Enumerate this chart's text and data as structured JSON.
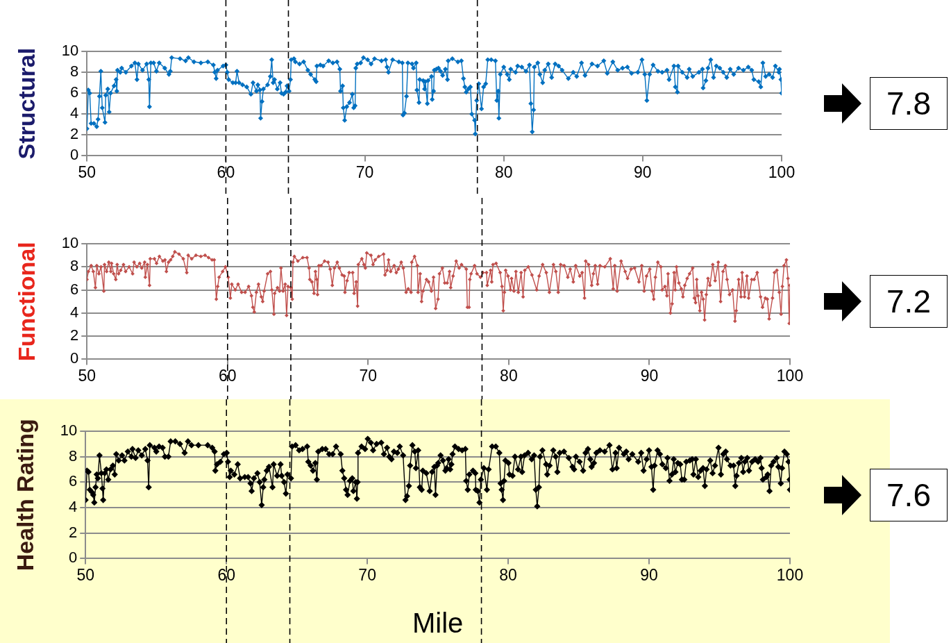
{
  "chart_data": [
    {
      "type": "line",
      "ylabel": "Structural",
      "xlim": [
        50,
        100
      ],
      "xticks": [
        50,
        60,
        70,
        80,
        90,
        100
      ],
      "ylim": [
        0,
        10
      ],
      "yticks": [
        0,
        2,
        4,
        6,
        8,
        10
      ],
      "grid": "y",
      "marker": "diamond",
      "annotations": [
        "7.8"
      ],
      "ref_lines": [
        {
          "axis": "x",
          "value": 60,
          "color": "#000000",
          "line_style": "dashed"
        },
        {
          "axis": "x",
          "value": 64.5,
          "color": "#000000",
          "line_style": "dashed"
        },
        {
          "axis": "x",
          "value": 78.1,
          "color": "#000000",
          "line_style": "dashed"
        }
      ],
      "series": [
        {
          "color": "#0070c0",
          "x": [
            50.0,
            50.1,
            50.2,
            50.3,
            50.5,
            50.7,
            50.8,
            50.9,
            51.0,
            51.1,
            51.3,
            51.35,
            51.5,
            51.6,
            51.7,
            51.95,
            52.1,
            52.15,
            52.2,
            52.4,
            52.5,
            52.8,
            53.2,
            53.45,
            53.6,
            53.7,
            54.0,
            54.3,
            54.45,
            54.5,
            54.6,
            54.8,
            55.0,
            55.2,
            55.6,
            55.9,
            56.0,
            56.1,
            56.7,
            57.1,
            57.3,
            57.7,
            58.2,
            58.7,
            59.1,
            59.2,
            59.3,
            59.4,
            59.8,
            60.0,
            60.1,
            60.2,
            60.5,
            60.7,
            60.8,
            60.95,
            61.2,
            61.5,
            61.8,
            61.95,
            62.2,
            62.3,
            62.45,
            62.5,
            62.6,
            62.7,
            63.0,
            63.2,
            63.3,
            63.4,
            63.5,
            63.7,
            63.9,
            64.0,
            64.15,
            64.3,
            64.4,
            64.55,
            64.65,
            64.7,
            64.9,
            65.0,
            65.3,
            65.6,
            65.9,
            66.1,
            66.4,
            66.5,
            66.55,
            66.8,
            67.0,
            67.4,
            67.7,
            68.0,
            68.2,
            68.25,
            68.4,
            68.45,
            68.55,
            68.7,
            68.9,
            69.1,
            69.2,
            69.3,
            69.35,
            69.45,
            69.7,
            69.9,
            70.2,
            70.45,
            70.7,
            71.2,
            71.5,
            71.6,
            71.7,
            72.0,
            72.45,
            72.7,
            72.75,
            72.85,
            73.0,
            73.1,
            73.4,
            73.5,
            73.7,
            73.75,
            73.9,
            73.95,
            74.2,
            74.3,
            74.35,
            74.5,
            74.55,
            74.8,
            74.85,
            74.95,
            75.0,
            75.15,
            75.3,
            75.45,
            75.6,
            75.8,
            75.95,
            76.0,
            76.3,
            76.7,
            76.95,
            77.1,
            77.2,
            77.3,
            77.45,
            77.6,
            77.7,
            77.9,
            77.95,
            78.05,
            78.2,
            78.4,
            78.55,
            78.7,
            78.85,
            79.1,
            79.4,
            79.5,
            79.6,
            79.65,
            79.75,
            80.0,
            80.25,
            80.4,
            80.5,
            80.85,
            81.0,
            81.3,
            81.6,
            81.85,
            81.95,
            82.05,
            82.15,
            82.2,
            82.45,
            82.6,
            82.8,
            82.95,
            83.2,
            83.45,
            83.7,
            83.95,
            84.2,
            84.65,
            85.0,
            85.25,
            85.6,
            85.85,
            86.35,
            86.75,
            87.2,
            87.45,
            87.85,
            88.2,
            88.55,
            88.9,
            89.2,
            89.65,
            89.95,
            90.15,
            90.3,
            90.5,
            90.75,
            91.1,
            91.4,
            91.75,
            91.9,
            92.25,
            92.35,
            92.5,
            92.55,
            92.85,
            93.2,
            93.35,
            93.6,
            94.05,
            94.3,
            94.35,
            94.55,
            94.7,
            94.9,
            95.1,
            95.3,
            95.55,
            95.8,
            96.05,
            96.3,
            96.55,
            96.9,
            97.25,
            97.6,
            97.85,
            98.0,
            98.35,
            98.5,
            98.65,
            98.85,
            99.1,
            99.35,
            99.55,
            99.8,
            99.85,
            99.95,
            100.0
          ],
          "values": [
            2.6,
            6.3,
            6.0,
            3.1,
            3.1,
            2.8,
            3.5,
            5.7,
            8.1,
            4.6,
            3.2,
            5.8,
            6.4,
            4.2,
            6.0,
            6.7,
            7.3,
            6.2,
            8.2,
            8.0,
            8.4,
            8.0,
            8.6,
            8.9,
            7.3,
            8.8,
            8.2,
            8.8,
            7.3,
            4.7,
            8.9,
            8.9,
            8.1,
            8.9,
            8.4,
            7.8,
            8.1,
            9.4,
            9.3,
            9.1,
            9.4,
            9.0,
            8.9,
            9.0,
            8.7,
            8.0,
            7.4,
            8.2,
            8.6,
            8.7,
            8.0,
            7.3,
            7.0,
            7.0,
            8.1,
            7.0,
            6.8,
            6.6,
            5.9,
            7.0,
            6.2,
            6.8,
            6.3,
            3.6,
            5.2,
            6.4,
            6.8,
            7.6,
            9.2,
            7.0,
            7.3,
            6.4,
            7.0,
            6.0,
            5.9,
            6.1,
            6.7,
            6.2,
            7.3,
            9.2,
            9.3,
            9.0,
            8.8,
            9.0,
            8.2,
            7.8,
            7.3,
            7.1,
            8.6,
            8.7,
            8.6,
            9.1,
            8.9,
            9.0,
            8.3,
            6.2,
            6.7,
            4.6,
            3.4,
            4.7,
            5.1,
            5.9,
            4.6,
            4.8,
            8.4,
            8.8,
            8.9,
            9.4,
            9.2,
            8.8,
            9.3,
            9.1,
            9.2,
            8.5,
            8.0,
            9.2,
            9.0,
            8.9,
            3.9,
            4.1,
            5.7,
            8.9,
            8.8,
            8.4,
            8.9,
            6.3,
            5.1,
            7.3,
            7.2,
            6.4,
            7.1,
            5.0,
            7.2,
            7.6,
            5.4,
            6.2,
            8.2,
            8.3,
            8.4,
            8.1,
            7.7,
            8.3,
            7.3,
            9.1,
            9.3,
            9.0,
            9.1,
            7.4,
            6.6,
            6.1,
            6.4,
            6.6,
            4.0,
            3.4,
            2.1,
            5.3,
            6.9,
            4.5,
            6.6,
            6.9,
            9.2,
            9.2,
            9.1,
            5.3,
            6.2,
            3.6,
            7.8,
            8.5,
            7.8,
            7.3,
            8.3,
            8.0,
            8.6,
            8.5,
            8.1,
            8.7,
            5.0,
            2.3,
            4.4,
            8.5,
            8.9,
            7.8,
            7.0,
            8.2,
            8.8,
            7.5,
            8.8,
            8.6,
            8.2,
            7.4,
            8.0,
            7.6,
            8.9,
            7.7,
            8.8,
            8.6,
            9.1,
            7.9,
            9.0,
            8.2,
            8.4,
            8.5,
            7.9,
            8.0,
            9.2,
            7.8,
            5.3,
            7.8,
            8.7,
            8.1,
            8.0,
            8.2,
            7.3,
            8.6,
            6.6,
            6.1,
            8.6,
            8.0,
            7.5,
            8.3,
            7.6,
            8.0,
            8.3,
            6.5,
            7.2,
            8.4,
            9.2,
            7.5,
            8.6,
            8.4,
            8.0,
            7.5,
            8.3,
            7.8,
            8.4,
            8.2,
            8.5,
            8.2,
            7.3,
            7.1,
            6.6,
            8.9,
            7.6,
            7.8,
            7.5,
            8.6,
            8.0,
            8.3,
            7.3,
            6.0
          ]
        }
      ]
    },
    {
      "type": "line",
      "ylabel": "Functional",
      "xlim": [
        50,
        100
      ],
      "xticks": [
        50,
        60,
        70,
        80,
        90,
        100
      ],
      "ylim": [
        0,
        10
      ],
      "yticks": [
        0,
        2,
        4,
        6,
        8,
        10
      ],
      "grid": "y",
      "marker": "diamond",
      "annotations": [
        "7.2"
      ],
      "ref_lines": [
        {
          "axis": "x",
          "value": 60,
          "color": "#000000",
          "line_style": "dashed"
        },
        {
          "axis": "x",
          "value": 64.5,
          "color": "#000000",
          "line_style": "dashed"
        },
        {
          "axis": "x",
          "value": 78.1,
          "color": "#000000",
          "line_style": "dashed"
        }
      ],
      "series": [
        {
          "color": "#c0504d",
          "x": [
            50.0,
            50.1,
            50.3,
            50.45,
            50.6,
            50.7,
            50.85,
            51.0,
            51.2,
            51.25,
            51.4,
            51.55,
            51.7,
            51.75,
            51.9,
            52.05,
            52.15,
            52.25,
            52.4,
            52.6,
            52.75,
            53.0,
            53.25,
            53.35,
            53.55,
            53.75,
            53.9,
            54.1,
            54.15,
            54.3,
            54.45,
            54.5,
            54.8,
            54.95,
            55.15,
            55.4,
            55.55,
            55.65,
            55.8,
            55.95,
            56.1,
            56.25,
            56.55,
            56.85,
            57.1,
            57.2,
            57.45,
            57.75,
            58.1,
            58.4,
            58.65,
            58.9,
            59.05,
            59.2,
            59.3,
            59.4,
            59.65,
            59.85,
            60.05,
            60.2,
            60.3,
            60.55,
            60.75,
            61.0,
            61.25,
            61.5,
            61.7,
            61.8,
            61.9,
            62.05,
            62.2,
            62.4,
            62.5,
            62.6,
            62.85,
            63.05,
            63.15,
            63.3,
            63.35,
            63.55,
            63.7,
            63.8,
            63.95,
            64.1,
            64.2,
            64.3,
            64.5,
            64.6,
            64.65,
            64.75,
            65.0,
            65.35,
            65.65,
            65.8,
            65.85,
            66.0,
            66.15,
            66.25,
            66.35,
            66.4,
            66.5,
            66.65,
            66.9,
            67.15,
            67.3,
            67.45,
            67.6,
            67.8,
            67.95,
            68.15,
            68.3,
            68.35,
            68.5,
            68.65,
            68.9,
            69.0,
            69.15,
            69.25,
            69.3,
            69.55,
            69.7,
            69.8,
            69.9,
            70.2,
            70.35,
            70.5,
            70.75,
            71.1,
            71.2,
            71.35,
            71.45,
            71.6,
            71.85,
            72.0,
            72.15,
            72.35,
            72.5,
            72.7,
            72.85,
            73.05,
            73.1,
            73.3,
            73.5,
            73.55,
            73.7,
            73.8,
            73.9,
            74.15,
            74.3,
            74.5,
            74.65,
            74.8,
            74.97,
            75.07,
            75.28,
            75.45,
            75.62,
            75.79,
            75.87,
            76.04,
            76.26,
            76.47,
            76.64,
            76.98,
            77.06,
            77.18,
            77.23,
            77.32,
            77.57,
            77.74,
            77.99,
            78.16,
            78.42,
            78.47,
            78.71,
            78.79,
            78.88,
            79.1,
            79.39,
            79.52,
            79.61,
            79.69,
            79.78,
            79.95,
            80.12,
            80.2,
            80.37,
            80.51,
            80.68,
            80.88,
            81.02,
            81.14,
            81.39,
            81.65,
            81.99,
            82.16,
            82.41,
            82.67,
            82.89,
            83.18,
            83.35,
            83.52,
            83.69,
            83.94,
            84.2,
            84.37,
            84.59,
            84.76,
            85.05,
            85.22,
            85.39,
            85.47,
            85.68,
            85.9,
            86.02,
            86.15,
            86.32,
            86.49,
            86.83,
            87.22,
            87.43,
            87.54,
            87.71,
            87.99,
            88.28,
            88.45,
            88.7,
            88.95,
            89.26,
            89.46,
            89.63,
            89.8,
            90.03,
            90.2,
            90.31,
            90.43,
            90.6,
            90.82,
            90.91,
            91.11,
            91.25,
            91.33,
            91.5,
            91.62,
            91.76,
            91.84,
            91.93,
            92.1,
            92.27,
            92.39,
            92.52,
            92.69,
            92.86,
            93.08,
            93.2,
            93.29,
            93.37,
            93.46,
            93.59,
            93.71,
            93.83,
            93.93,
            94.05,
            94.17,
            94.31,
            94.51,
            94.68,
            94.9,
            95.07,
            95.24,
            95.41,
            95.53,
            95.7,
            95.92,
            96.09,
            96.18,
            96.35,
            96.52,
            96.6,
            96.77,
            96.94,
            97.06,
            97.28,
            97.45,
            97.67,
            97.91,
            98.05,
            98.25,
            98.39,
            98.52,
            98.76,
            98.9,
            99.07,
            99.24,
            99.37,
            99.46,
            99.58,
            99.75,
            99.86,
            99.95,
            100.0
          ],
          "values": [
            6.9,
            7.6,
            8.1,
            7.6,
            6.2,
            8.1,
            7.4,
            8.0,
            5.9,
            8.2,
            7.6,
            8.4,
            7.6,
            8.3,
            7.4,
            6.9,
            8.2,
            7.4,
            7.7,
            8.2,
            7.6,
            8.0,
            7.4,
            8.4,
            8.0,
            8.3,
            7.9,
            8.4,
            7.1,
            8.2,
            6.4,
            8.7,
            8.7,
            8.3,
            8.9,
            8.5,
            8.6,
            7.6,
            8.4,
            8.6,
            8.9,
            9.3,
            9.1,
            8.7,
            7.5,
            9.0,
            8.7,
            9.0,
            8.9,
            9.0,
            8.8,
            8.6,
            8.6,
            5.2,
            6.3,
            7.1,
            7.6,
            8.0,
            7.1,
            5.3,
            6.5,
            6.0,
            6.5,
            5.8,
            5.8,
            6.3,
            5.5,
            4.5,
            4.1,
            5.8,
            6.5,
            5.4,
            5.0,
            5.9,
            7.4,
            7.6,
            6.0,
            3.9,
            5.7,
            6.2,
            5.9,
            7.9,
            5.9,
            6.5,
            3.8,
            6.3,
            6.2,
            5.2,
            8.4,
            8.9,
            8.5,
            8.8,
            8.8,
            7.9,
            6.9,
            6.7,
            5.7,
            7.6,
            6.9,
            5.6,
            8.1,
            8.1,
            8.5,
            8.4,
            7.8,
            6.4,
            7.9,
            8.4,
            7.9,
            7.3,
            7.2,
            5.8,
            6.8,
            7.5,
            7.5,
            5.7,
            6.7,
            4.6,
            8.2,
            8.7,
            8.2,
            7.9,
            9.2,
            9.0,
            8.2,
            8.6,
            8.9,
            9.1,
            7.3,
            7.7,
            8.6,
            7.6,
            8.1,
            7.5,
            7.8,
            8.4,
            7.9,
            5.8,
            6.1,
            5.8,
            8.4,
            8.9,
            8.1,
            5.8,
            7.4,
            5.0,
            5.9,
            6.9,
            6.7,
            5.9,
            7.1,
            4.4,
            5.2,
            7.4,
            7.9,
            6.6,
            6.6,
            7.6,
            6.2,
            7.2,
            8.5,
            7.9,
            8.2,
            7.8,
            4.5,
            4.5,
            6.9,
            7.4,
            8.1,
            7.4,
            7.1,
            7.5,
            7.5,
            6.4,
            7.7,
            6.7,
            8.2,
            8.3,
            7.5,
            6.3,
            4.2,
            5.8,
            7.7,
            7.2,
            6.0,
            7.0,
            5.9,
            7.6,
            5.8,
            7.5,
            5.4,
            7.7,
            8.0,
            7.3,
            6.0,
            7.2,
            8.2,
            7.5,
            5.8,
            8.2,
            7.6,
            5.8,
            8.2,
            8.1,
            7.1,
            7.8,
            6.7,
            8.1,
            7.2,
            7.5,
            5.3,
            8.5,
            8.2,
            6.4,
            7.4,
            8.1,
            6.5,
            8.1,
            8.0,
            8.7,
            6.1,
            8.1,
            5.9,
            8.5,
            7.6,
            7.0,
            7.8,
            7.9,
            6.7,
            8.1,
            5.9,
            7.2,
            7.8,
            5.9,
            5.2,
            7.1,
            8.4,
            8.0,
            6.0,
            6.3,
            5.5,
            7.4,
            4.0,
            4.8,
            7.5,
            6.0,
            8.0,
            6.6,
            6.1,
            5.4,
            6.4,
            7.0,
            7.4,
            7.9,
            5.3,
            4.9,
            6.9,
            5.5,
            4.2,
            5.8,
            5.2,
            3.4,
            5.6,
            7.0,
            6.4,
            8.2,
            6.8,
            8.4,
            5.0,
            7.6,
            8.1,
            6.9,
            5.6,
            6.0,
            3.3,
            4.2,
            6.9,
            5.4,
            7.5,
            5.4,
            7.2,
            5.3,
            6.9,
            6.9,
            7.5,
            5.4,
            4.5,
            5.3,
            5.2,
            3.5,
            5.3,
            7.5,
            7.7,
            5.8,
            3.9,
            6.3,
            8.1,
            8.6,
            7.0,
            3.1,
            6.4
          ]
        }
      ]
    },
    {
      "type": "line",
      "ylabel": "Health Rating",
      "xlabel": "Mile",
      "xlim": [
        50,
        100
      ],
      "xticks": [
        50,
        60,
        70,
        80,
        90,
        100
      ],
      "ylim": [
        0,
        10
      ],
      "yticks": [
        0,
        2,
        4,
        6,
        8,
        10
      ],
      "grid": "y",
      "marker": "diamond",
      "annotations": [
        "7.6"
      ],
      "ref_lines": [
        {
          "axis": "x",
          "value": 60,
          "color": "#000000",
          "line_style": "dashed"
        },
        {
          "axis": "x",
          "value": 64.5,
          "color": "#000000",
          "line_style": "dashed"
        },
        {
          "axis": "x",
          "value": 78.1,
          "color": "#000000",
          "line_style": "dashed"
        }
      ],
      "series": [
        {
          "color": "#000000",
          "x": [
            50.0,
            50.1,
            50.21,
            50.3,
            50.46,
            50.54,
            50.62,
            50.71,
            50.79,
            50.87,
            50.99,
            51.12,
            51.2,
            51.25,
            51.36,
            51.48,
            51.61,
            51.77,
            51.94,
            52.07,
            52.18,
            52.35,
            52.59,
            52.76,
            53.0,
            53.25,
            53.33,
            53.55,
            53.74,
            53.99,
            54.24,
            54.4,
            54.48,
            54.56,
            54.89,
            55.02,
            55.22,
            55.47,
            55.63,
            55.88,
            56.04,
            56.37,
            56.7,
            57.03,
            57.27,
            57.52,
            58.01,
            58.67,
            58.99,
            59.16,
            59.21,
            59.33,
            59.57,
            59.82,
            60.02,
            60.11,
            60.23,
            60.31,
            60.56,
            60.8,
            60.97,
            61.3,
            61.54,
            61.71,
            61.79,
            61.95,
            62.2,
            62.36,
            62.5,
            62.61,
            62.69,
            62.86,
            63.02,
            63.27,
            63.35,
            63.6,
            63.84,
            63.92,
            64.09,
            64.22,
            64.33,
            64.58,
            64.66,
            64.91,
            65.16,
            65.4,
            65.73,
            65.81,
            65.98,
            66.14,
            66.31,
            66.42,
            66.52,
            66.8,
            67.04,
            67.29,
            67.54,
            67.78,
            68.11,
            68.23,
            68.36,
            68.49,
            68.6,
            68.77,
            68.93,
            69.01,
            69.18,
            69.26,
            69.31,
            69.34,
            69.59,
            69.84,
            70.03,
            70.25,
            70.41,
            70.66,
            70.99,
            71.18,
            71.4,
            71.56,
            71.72,
            71.89,
            72.13,
            72.3,
            72.54,
            72.71,
            72.82,
            72.95,
            73.04,
            73.2,
            73.37,
            73.45,
            73.61,
            73.73,
            73.86,
            73.94,
            74.19,
            74.43,
            74.6,
            74.76,
            74.84,
            74.95,
            75.03,
            75.2,
            75.37,
            75.54,
            75.63,
            75.77,
            75.88,
            75.97,
            76.05,
            76.22,
            76.48,
            76.73,
            76.96,
            77.02,
            77.13,
            77.24,
            77.5,
            77.67,
            77.7,
            77.84,
            77.96,
            78.06,
            78.27,
            78.49,
            78.61,
            78.86,
            79.12,
            79.37,
            79.46,
            79.54,
            79.63,
            79.71,
            79.8,
            80.02,
            80.09,
            80.31,
            80.48,
            80.7,
            80.9,
            80.99,
            81.16,
            81.41,
            81.67,
            81.84,
            81.96,
            82.06,
            82.18,
            82.26,
            82.43,
            82.69,
            82.77,
            82.94,
            83.2,
            83.37,
            83.49,
            83.66,
            83.96,
            84.3,
            84.56,
            84.68,
            84.81,
            85.07,
            85.32,
            85.49,
            85.66,
            85.83,
            85.92,
            86.09,
            86.26,
            86.51,
            86.85,
            87.19,
            87.4,
            87.62,
            87.7,
            87.87,
            88.21,
            88.38,
            88.55,
            88.81,
            89.23,
            89.44,
            89.61,
            89.83,
            90.0,
            90.17,
            90.29,
            90.39,
            90.6,
            90.77,
            90.94,
            91.19,
            91.31,
            91.45,
            91.62,
            91.75,
            91.87,
            92.04,
            92.21,
            92.33,
            92.5,
            92.64,
            92.89,
            93.06,
            93.15,
            93.32,
            93.49,
            93.66,
            93.83,
            93.96,
            94.08,
            94.34,
            94.51,
            94.68,
            94.93,
            95.1,
            95.27,
            95.44,
            95.53,
            95.78,
            96.0,
            96.12,
            96.21,
            96.38,
            96.55,
            96.68,
            96.8,
            96.97,
            97.09,
            97.31,
            97.53,
            97.74,
            97.91,
            97.99,
            98.08,
            98.33,
            98.42,
            98.55,
            98.67,
            98.84,
            99.06,
            99.18,
            99.35,
            99.44,
            99.61,
            99.78,
            99.9,
            99.98,
            100.0
          ],
          "values": [
            4.6,
            6.9,
            6.8,
            5.4,
            5.2,
            5.0,
            4.4,
            5.6,
            6.6,
            6.3,
            8.1,
            6.7,
            5.5,
            4.6,
            6.7,
            7.0,
            6.2,
            7.0,
            7.3,
            6.6,
            8.2,
            7.7,
            8.1,
            7.7,
            8.4,
            8.0,
            8.6,
            7.9,
            8.5,
            8.1,
            8.6,
            7.7,
            5.6,
            8.9,
            8.7,
            8.4,
            8.8,
            8.7,
            8.0,
            8.0,
            9.2,
            9.2,
            9.0,
            8.3,
            9.2,
            8.9,
            8.9,
            8.9,
            8.7,
            8.4,
            6.9,
            7.4,
            7.6,
            8.2,
            8.3,
            7.6,
            6.4,
            6.9,
            6.6,
            7.4,
            6.3,
            6.4,
            6.4,
            5.9,
            5.3,
            6.3,
            6.7,
            6.0,
            4.2,
            5.6,
            6.2,
            6.9,
            7.2,
            5.6,
            7.4,
            6.5,
            7.4,
            6.5,
            6.0,
            5.1,
            6.6,
            6.3,
            8.8,
            8.9,
            8.5,
            8.6,
            8.8,
            7.6,
            7.3,
            6.9,
            7.5,
            6.2,
            8.4,
            8.6,
            8.6,
            8.2,
            8.2,
            8.8,
            8.2,
            6.9,
            6.3,
            5.4,
            5.0,
            6.1,
            6.3,
            5.3,
            6.0,
            4.7,
            6.0,
            8.3,
            8.8,
            8.6,
            9.4,
            9.1,
            8.5,
            9.0,
            9.1,
            8.2,
            8.7,
            8.0,
            7.8,
            8.4,
            8.3,
            8.8,
            8.1,
            4.6,
            4.9,
            5.7,
            7.3,
            8.9,
            8.4,
            7.1,
            8.5,
            5.6,
            5.4,
            6.9,
            6.7,
            5.3,
            6.8,
            7.2,
            5.0,
            7.3,
            7.5,
            8.1,
            7.7,
            6.9,
            7.1,
            7.8,
            7.0,
            7.4,
            8.2,
            8.8,
            8.6,
            8.5,
            8.6,
            6.1,
            5.4,
            6.6,
            6.9,
            6.7,
            5.4,
            5.3,
            4.4,
            6.2,
            7.1,
            5.4,
            7.0,
            8.8,
            8.8,
            8.3,
            5.9,
            5.4,
            4.6,
            6.1,
            7.7,
            7.5,
            6.6,
            6.5,
            8.0,
            7.0,
            8.0,
            6.8,
            8.1,
            8.3,
            7.8,
            8.1,
            5.4,
            4.1,
            5.6,
            8.0,
            8.5,
            7.4,
            6.6,
            7.3,
            8.5,
            8.0,
            6.8,
            8.3,
            8.4,
            7.9,
            7.2,
            7.0,
            8.0,
            7.6,
            6.9,
            8.3,
            8.6,
            7.8,
            7.2,
            7.5,
            8.3,
            8.5,
            8.4,
            8.9,
            7.0,
            8.3,
            7.1,
            8.7,
            8.2,
            8.4,
            7.8,
            8.2,
            7.6,
            8.3,
            6.9,
            7.8,
            8.5,
            7.2,
            5.4,
            7.3,
            8.5,
            8.2,
            7.4,
            7.1,
            7.9,
            6.1,
            6.6,
            7.8,
            6.8,
            7.5,
            7.4,
            6.2,
            6.2,
            7.6,
            7.7,
            7.8,
            6.6,
            7.8,
            6.4,
            6.9,
            7.1,
            5.7,
            7.0,
            7.7,
            6.7,
            7.3,
            8.7,
            6.6,
            8.2,
            8.4,
            7.8,
            7.3,
            7.3,
            5.7,
            6.5,
            7.5,
            7.9,
            6.8,
            7.6,
            7.9,
            6.9,
            7.6,
            7.8,
            7.6,
            7.9,
            7.1,
            6.2,
            6.4,
            6.6,
            5.3,
            7.3,
            7.6,
            7.9,
            7.2,
            5.9,
            7.1,
            8.4,
            8.2,
            7.6,
            6.2,
            5.4
          ]
        }
      ]
    }
  ]
}
